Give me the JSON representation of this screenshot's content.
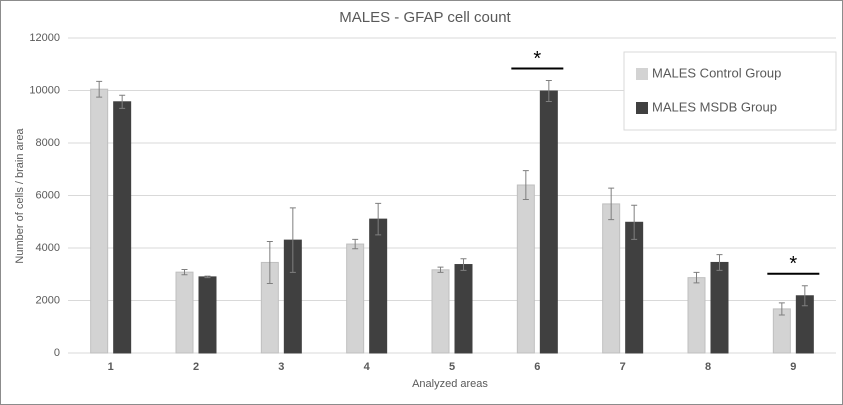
{
  "chart_data": {
    "type": "bar",
    "title": "MALES - GFAP cell count",
    "x_label": "Analyzed areas",
    "y_label": "Number of cells / brain area",
    "categories": [
      "1",
      "2",
      "3",
      "4",
      "5",
      "6",
      "7",
      "8",
      "9"
    ],
    "series": [
      {
        "name": "MALES Control Group",
        "color": "#d3d3d3",
        "values": [
          10050,
          3080,
          3450,
          4150,
          3170,
          6400,
          5680,
          2870,
          1680
        ],
        "errors": [
          300,
          100,
          800,
          180,
          100,
          550,
          600,
          200,
          230
        ]
      },
      {
        "name": "MALES MSDB Group",
        "color": "#404040",
        "values": [
          9570,
          2900,
          4300,
          5100,
          3370,
          9980,
          4980,
          3450,
          2180
        ],
        "errors": [
          250,
          30,
          1230,
          600,
          220,
          400,
          650,
          300,
          380
        ]
      }
    ],
    "ylim": [
      0,
      12000
    ],
    "yticks": [
      0,
      2000,
      4000,
      6000,
      8000,
      10000,
      12000
    ],
    "grid": true,
    "legend": "top-right",
    "annotations": [
      {
        "label": "*",
        "category": "6"
      },
      {
        "label": "*",
        "category": "9"
      }
    ]
  }
}
